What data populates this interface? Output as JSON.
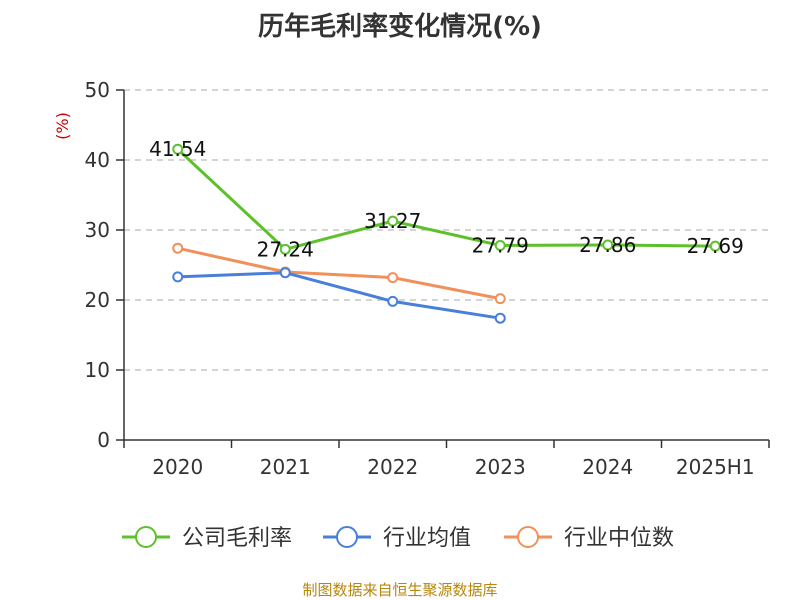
{
  "chart_data": {
    "type": "line",
    "title": "历年毛利率变化情况(%)",
    "ylabel": "(%)",
    "xlabel": "",
    "categories": [
      "2020",
      "2021",
      "2022",
      "2023",
      "2024",
      "2025H1"
    ],
    "ylim": [
      0,
      50
    ],
    "yticks": [
      0,
      10,
      20,
      30,
      40,
      50
    ],
    "grid": true,
    "legend_position": "bottom",
    "series": [
      {
        "name": "公司毛利率",
        "color": "#5cc12b",
        "values": [
          41.54,
          27.24,
          31.27,
          27.79,
          27.86,
          27.69
        ],
        "labels": [
          "41.54",
          "27.24",
          "31.27",
          "27.79",
          "27.86",
          "27.69"
        ]
      },
      {
        "name": "行业均值",
        "color": "#4a7fd9",
        "values": [
          23.3,
          23.9,
          19.8,
          17.4,
          null,
          null
        ]
      },
      {
        "name": "行业中位数",
        "color": "#f0905a",
        "values": [
          27.4,
          24.0,
          23.2,
          20.2,
          null,
          null
        ]
      }
    ]
  },
  "source_text": "制图数据来自恒生聚源数据库"
}
